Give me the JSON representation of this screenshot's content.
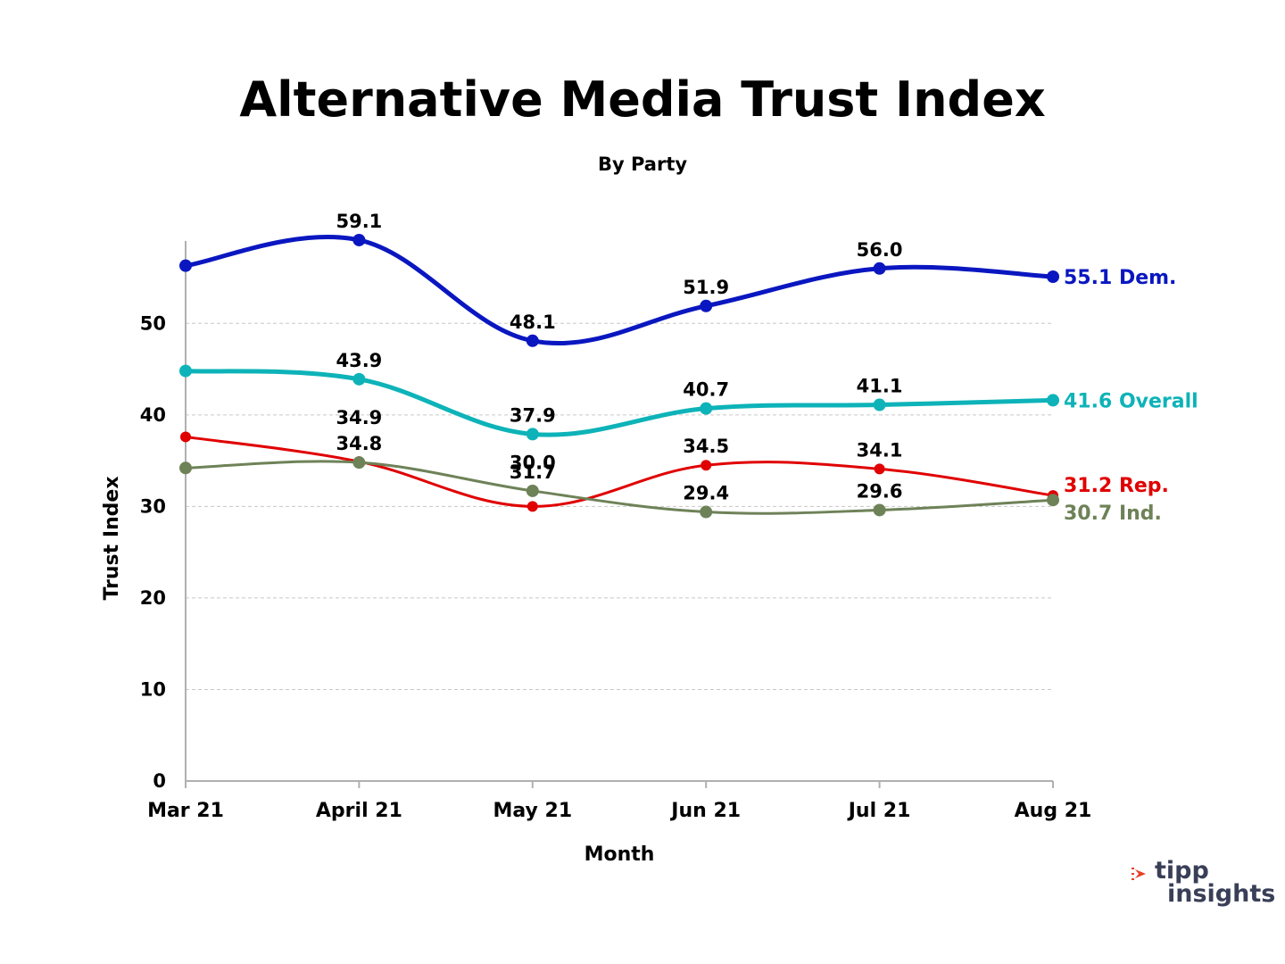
{
  "chart_data": {
    "type": "line",
    "title": "Alternative Media Trust Index",
    "subtitle": "By Party",
    "xlabel": "Month",
    "ylabel": "Trust Index",
    "categories": [
      "Mar 21",
      "April 21",
      "May 21",
      "Jun 21",
      "Jul 21",
      "Aug 21"
    ],
    "yticks": [
      0,
      10,
      20,
      30,
      40,
      50
    ],
    "ylim": [
      0,
      59
    ],
    "grid": true,
    "series": [
      {
        "name": "Dem.",
        "color": "#0a17c0",
        "values": [
          56.3,
          59.1,
          48.1,
          51.9,
          56.0,
          55.1
        ],
        "labels": [
          "",
          "59.1",
          "48.1",
          "51.9",
          "56.0",
          ""
        ],
        "end_label": "55.1 Dem."
      },
      {
        "name": "Overall",
        "color": "#0db3b8",
        "values": [
          44.8,
          43.9,
          37.9,
          40.7,
          41.1,
          41.6
        ],
        "labels": [
          "",
          "43.9",
          "37.9",
          "40.7",
          "41.1",
          ""
        ],
        "end_label": "41.6 Overall"
      },
      {
        "name": "Rep.",
        "color": "#e00000",
        "values": [
          37.6,
          34.9,
          30.0,
          34.5,
          34.1,
          31.2
        ],
        "labels": [
          "",
          "34.9",
          "30.0",
          "34.5",
          "34.1",
          ""
        ],
        "end_label": "31.2 Rep."
      },
      {
        "name": "Ind.",
        "color": "#6e8258",
        "values": [
          34.2,
          34.8,
          31.7,
          29.4,
          29.6,
          30.7
        ],
        "labels": [
          "",
          "34.8",
          "31.7",
          "29.4",
          "29.6",
          ""
        ],
        "end_label": "30.7 Ind."
      }
    ]
  },
  "logo": {
    "line1": "tipp",
    "line2": "insights",
    "accent": "#e8402a",
    "color": "#3a3f58"
  }
}
